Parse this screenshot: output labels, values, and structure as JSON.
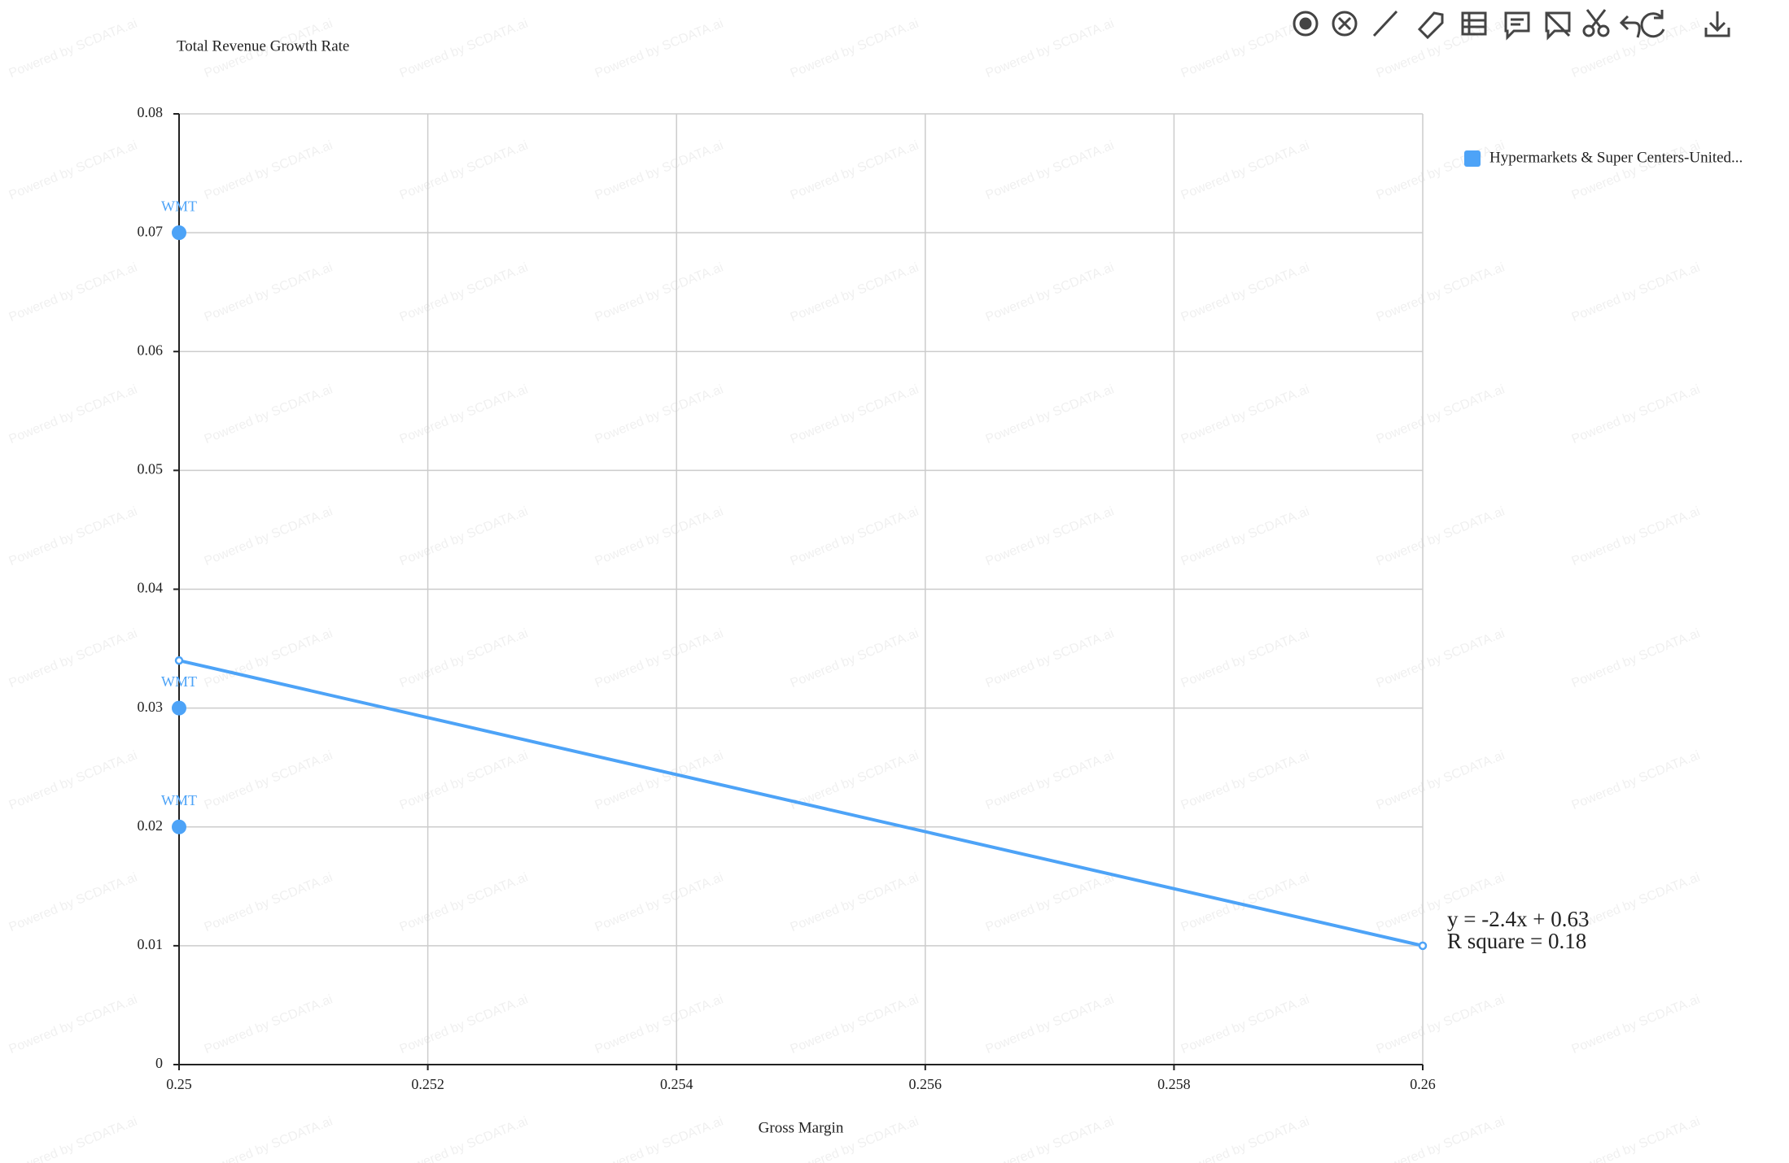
{
  "chart_data": {
    "type": "scatter",
    "title": "Total Revenue Growth Rate",
    "x_label": "Gross Margin",
    "watermark": "Powered by SCDATA.ai",
    "series": [
      {
        "name": "Hypermarkets & Super Centers-United...",
        "color": "#4da3f7",
        "x": [
          0.25,
          0.25,
          0.25
        ],
        "values": [
          0.07,
          0.03,
          0.02
        ],
        "labels": [
          "WMT",
          "WMT",
          "WMT"
        ]
      }
    ],
    "trendline": {
      "x": [
        0.25,
        0.26
      ],
      "y": [
        0.034,
        0.01
      ],
      "equation": "y = -2.4x + 0.63",
      "r_square": "R square = 0.18"
    },
    "xlim": [
      0.25,
      0.26
    ],
    "xticks": [
      0.25,
      0.252,
      0.254,
      0.256,
      0.258,
      0.26
    ],
    "ylim": [
      0,
      0.08
    ],
    "yticks": [
      0,
      0.01,
      0.02,
      0.03,
      0.04,
      0.05,
      0.06,
      0.07,
      0.08
    ],
    "grid": true,
    "legend": "top-right"
  }
}
